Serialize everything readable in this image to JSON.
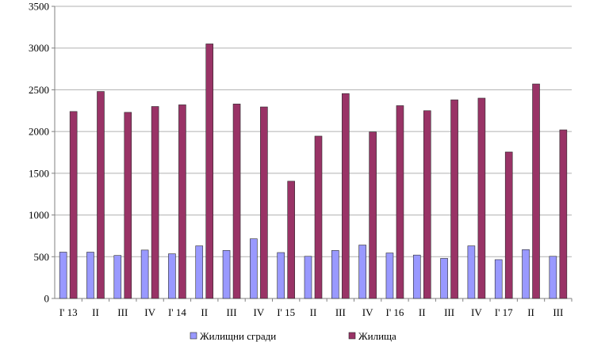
{
  "chart_data": {
    "type": "bar",
    "categories": [
      "I' 13",
      "II",
      "III",
      "IV",
      "I' 14",
      "II",
      "III",
      "IV",
      "I' 15",
      "II",
      "III",
      "IV",
      "I' 16",
      "II",
      "III",
      "IV",
      "I' 17",
      "II",
      "III"
    ],
    "series": [
      {
        "name": "Жилищни сгради",
        "color": "#9999ff",
        "values": [
          555,
          555,
          515,
          580,
          535,
          630,
          575,
          715,
          550,
          505,
          575,
          640,
          545,
          520,
          480,
          630,
          465,
          585,
          505
        ]
      },
      {
        "name": "Жилища",
        "color": "#993366",
        "values": [
          2240,
          2480,
          2230,
          2300,
          2320,
          3050,
          2330,
          2295,
          1405,
          1945,
          2455,
          1995,
          2310,
          2250,
          2380,
          2400,
          1755,
          2570,
          2020
        ]
      }
    ],
    "ylim": [
      0,
      3500
    ],
    "yticks": [
      0,
      500,
      1000,
      1500,
      2000,
      2500,
      3000,
      3500
    ],
    "grid": true,
    "legend": "bottom"
  }
}
